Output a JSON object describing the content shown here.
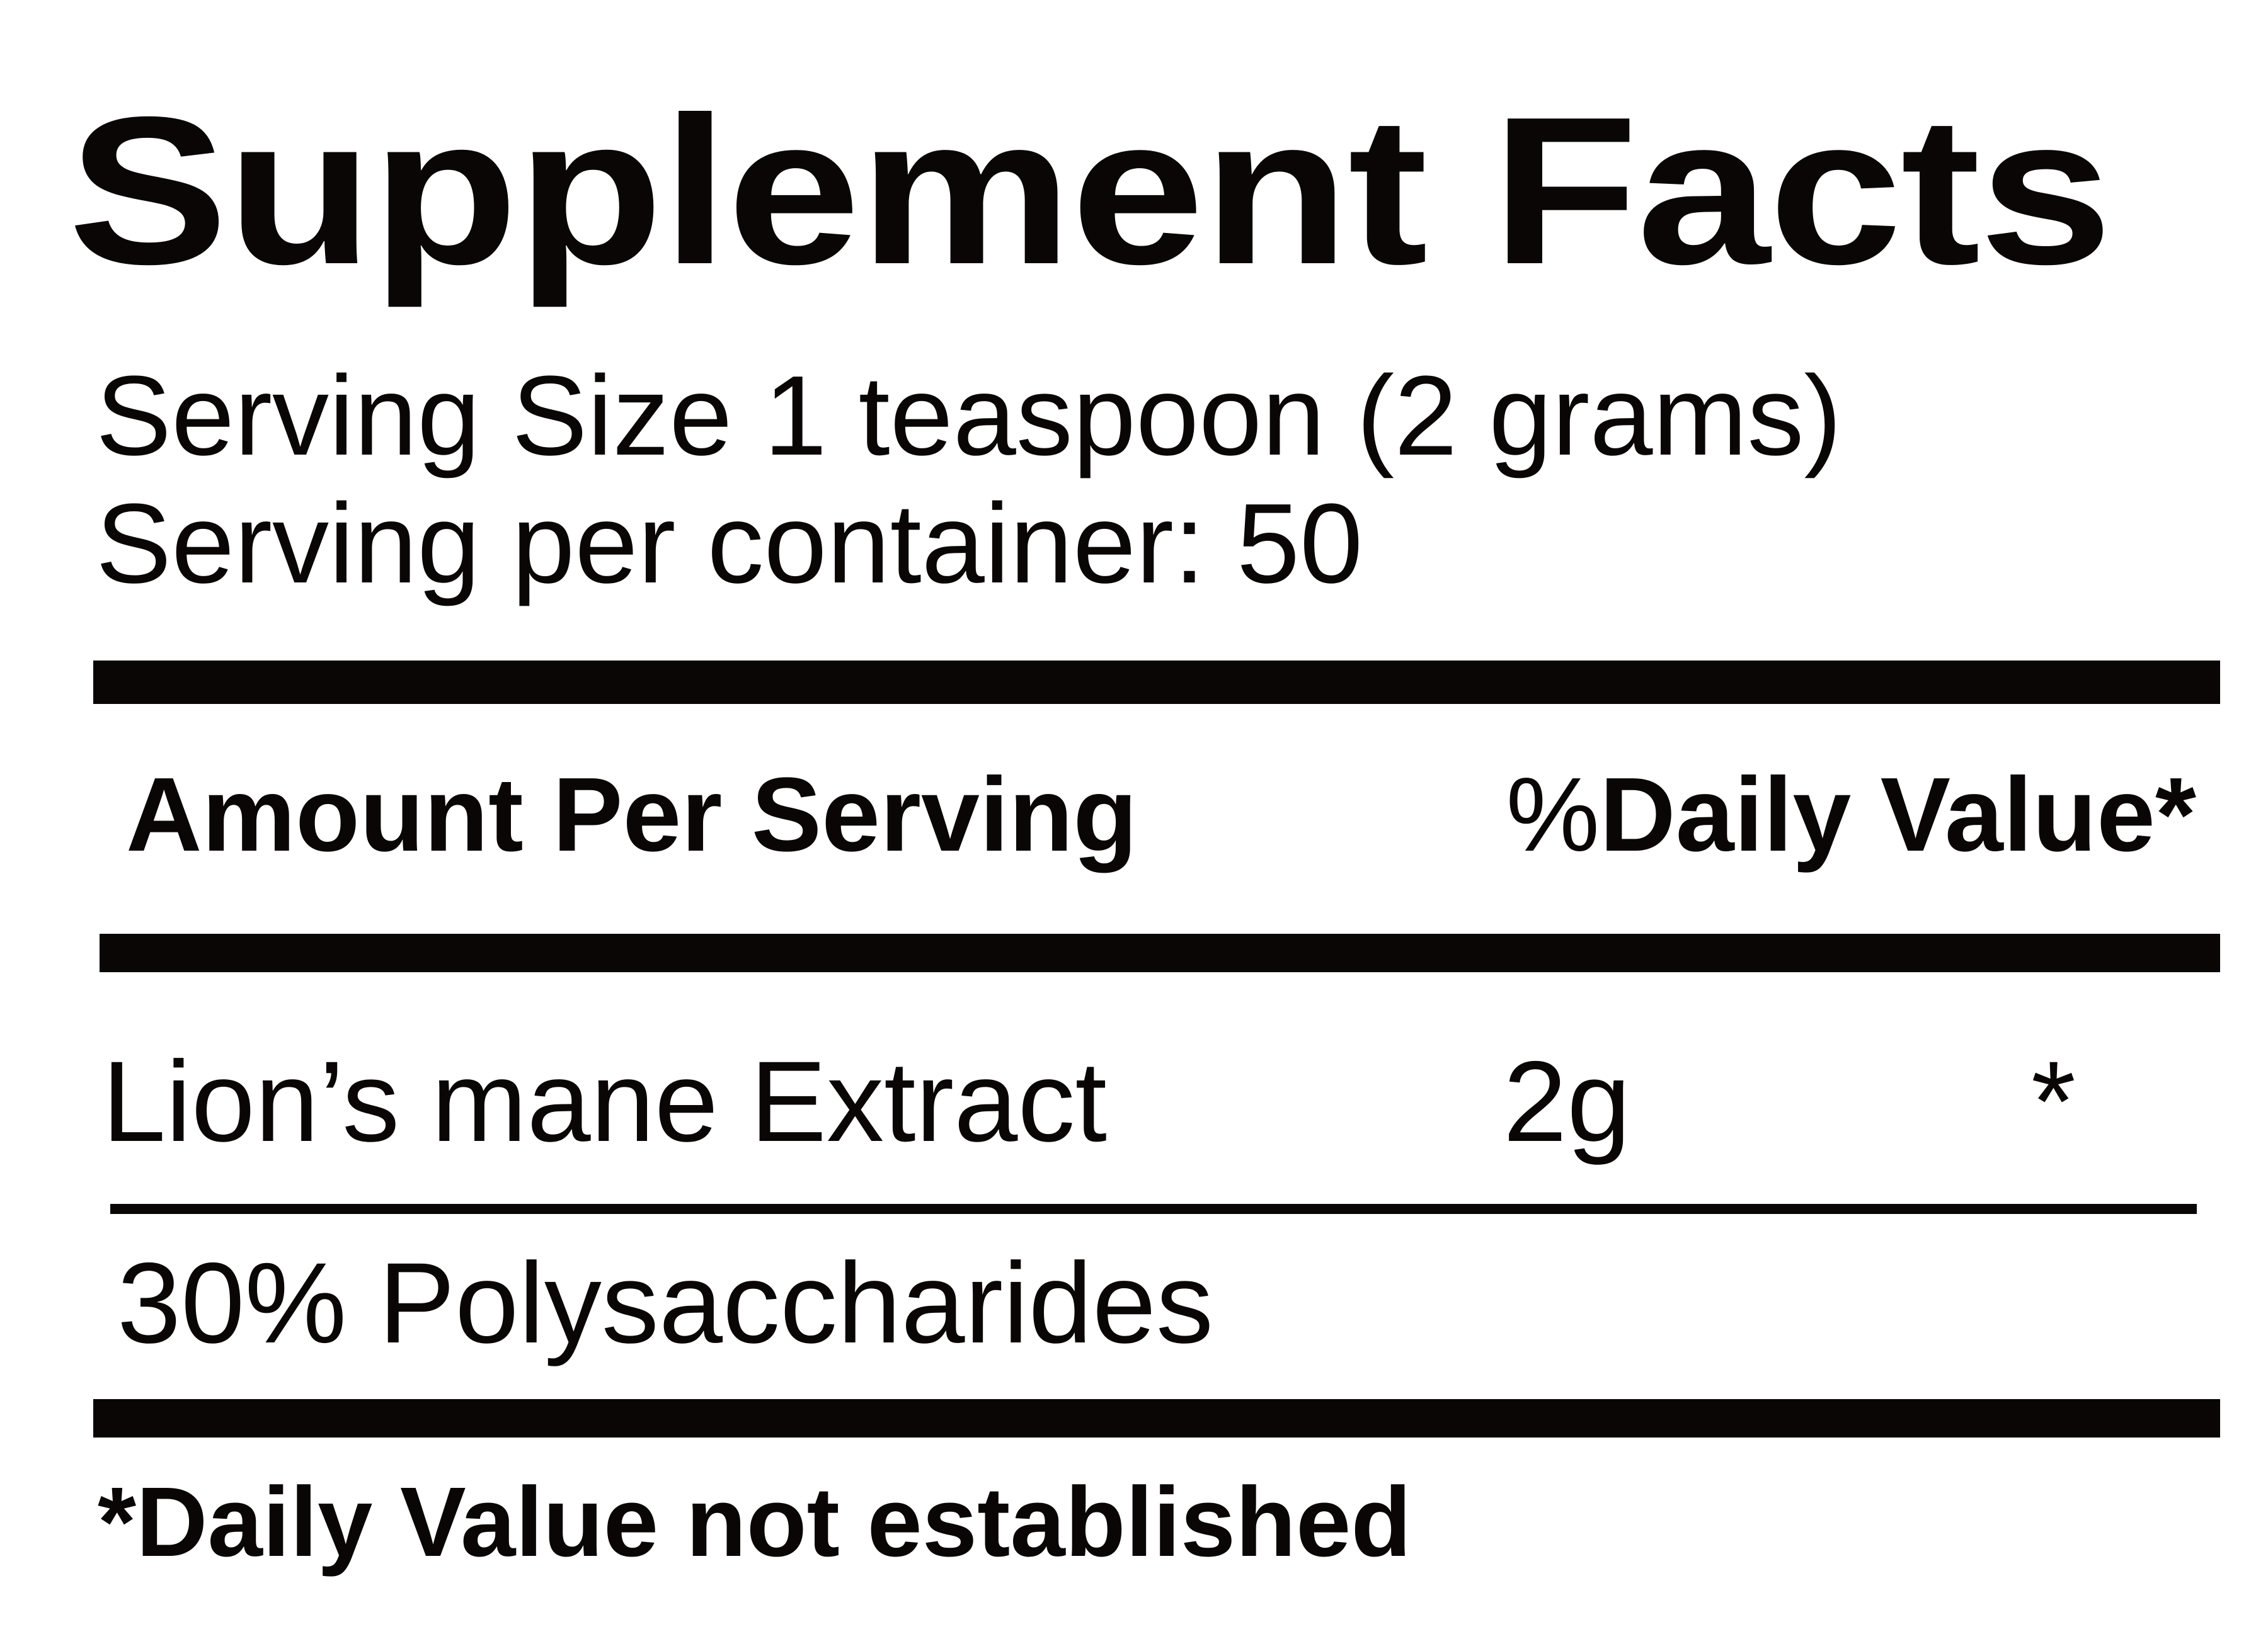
{
  "title": "Supplement Facts",
  "serving": {
    "size_line": "Serving Size 1 teaspoon (2 grams)",
    "per_container_line": "Serving per container: 50"
  },
  "table": {
    "amount_header": "Amount Per Serving",
    "daily_value_percent_sign": "%",
    "daily_value_header": "Daily Value*",
    "rows": [
      {
        "name": "Lion’s mane Extract",
        "amount": "2g",
        "daily_value": "*"
      }
    ],
    "sub_rows": [
      "30% Polysaccharides"
    ]
  },
  "footnote": "*Daily Value not established",
  "colors": {
    "ink": "#0a0605",
    "background": "#ffffff"
  }
}
